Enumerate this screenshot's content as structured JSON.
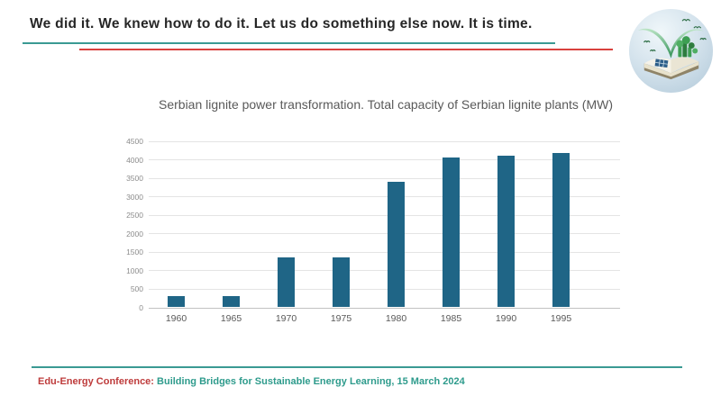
{
  "slide": {
    "title": "We did it. We knew how to do it. Let us do something else now. It is time.",
    "accent_teal": "#3A9A93",
    "accent_red": "#D9413D"
  },
  "logo": {
    "icon": "open-book-sprout-logo"
  },
  "chart_data": {
    "type": "bar",
    "title": "Serbian lignite power transformation. Total capacity of Serbian lignite plants (MW)",
    "categories": [
      "1960",
      "1965",
      "1970",
      "1975",
      "1980",
      "1985",
      "1990",
      "1995"
    ],
    "values": [
      300,
      300,
      1330,
      1330,
      3390,
      4050,
      4080,
      4170
    ],
    "xlabel": "",
    "ylabel": "",
    "ylim": [
      0,
      4500
    ],
    "yticks": [
      0,
      500,
      1000,
      1500,
      2000,
      2500,
      3000,
      3500,
      4000,
      4500
    ],
    "bar_color": "#1F6586",
    "grid": true,
    "legend": "none",
    "title_color": "#595959",
    "gridline_color": "#E4E4E4",
    "baseline_color": "#C2C2C2"
  },
  "footer": {
    "label": "Edu-Energy Conference:",
    "text": " Building Bridges for Sustainable Energy Learning, 15 March 2024"
  }
}
